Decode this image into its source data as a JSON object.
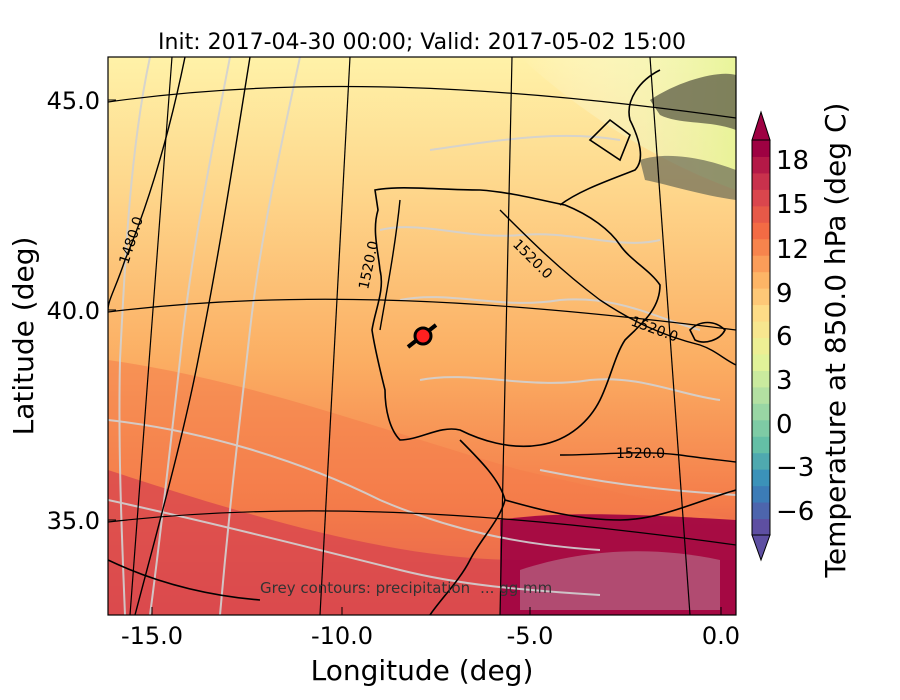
{
  "title": "Init: 2017-04-30 00:00; Valid: 2017-05-02 15:00",
  "xlabel": "Longitude (deg)",
  "ylabel": "Latitude (deg)",
  "x_ticks": [
    "-15.0",
    "-10.0",
    "-5.0",
    "0.0"
  ],
  "y_ticks": [
    "45.0",
    "40.0",
    "35.0"
  ],
  "colorbar": {
    "label": "Temperature at 850.0 hPa (deg C)",
    "ticks": [
      "18",
      "15",
      "12",
      "9",
      "6",
      "3",
      "0",
      "−3",
      "−6"
    ],
    "colors": [
      "#5e4fa2",
      "#3288bd",
      "#66c2a5",
      "#abdda4",
      "#e6f598",
      "#fee08b",
      "#fdae61",
      "#f46d43",
      "#d53e4f",
      "#9e0142"
    ]
  },
  "contour_labels": [
    "1480.0",
    "1520.0",
    "1520.0",
    "1520.0",
    "1520.0"
  ],
  "note": "Grey contours: precipitation",
  "note_suffix": "... gg mm",
  "marker": {
    "name": "point-of-interest"
  }
}
